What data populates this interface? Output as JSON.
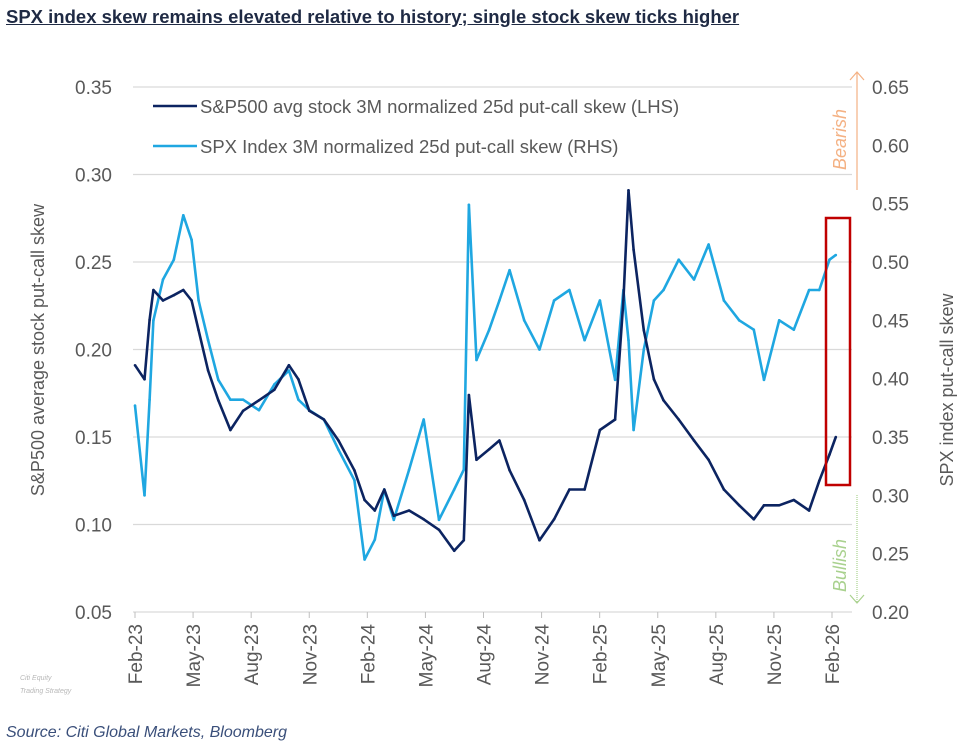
{
  "title": "SPX index skew remains elevated relative to history; single stock skew ticks higher",
  "source": "Source: Citi Global Markets, Bloomberg",
  "watermark": [
    "Citi Equity",
    "Trading Strategy"
  ],
  "chart_data": {
    "type": "line",
    "title": "SPX index skew remains elevated relative to history; single stock skew ticks higher",
    "ylabel": "S&P500 average stock put-call skew",
    "y2label": "SPX index put-call skew",
    "ylim": [
      0.05,
      0.35
    ],
    "y2lim": [
      0.2,
      0.65
    ],
    "yticks": [
      "0.05",
      "0.10",
      "0.15",
      "0.20",
      "0.25",
      "0.30",
      "0.35"
    ],
    "y2ticks": [
      "0.20",
      "0.25",
      "0.30",
      "0.35",
      "0.40",
      "0.45",
      "0.50",
      "0.55",
      "0.60",
      "0.65"
    ],
    "xticks": [
      "Feb-23",
      "May-23",
      "Aug-23",
      "Nov-23",
      "Feb-24",
      "May-24",
      "Aug-24",
      "Nov-24",
      "Feb-25",
      "May-25",
      "Aug-25",
      "Nov-25",
      "Feb-26"
    ],
    "grid": true,
    "legend_position": "top-left",
    "annotations": {
      "bearish": "Bearish",
      "bullish": "Bullish",
      "bearish_color": "#f4b183",
      "bullish_color": "#a9d18e",
      "highlight_box_color": "#c00000"
    },
    "x": [
      "2023-02-01",
      "2023-02-16",
      "2023-02-24",
      "2023-03-02",
      "2023-03-17",
      "2023-04-03",
      "2023-04-18",
      "2023-05-01",
      "2023-05-12",
      "2023-05-27",
      "2023-06-12",
      "2023-07-01",
      "2023-07-21",
      "2023-08-15",
      "2023-09-08",
      "2023-10-01",
      "2023-10-16",
      "2023-11-02",
      "2023-11-25",
      "2023-12-18",
      "2024-01-12",
      "2024-01-28",
      "2024-02-13",
      "2024-02-28",
      "2024-03-14",
      "2024-04-07",
      "2024-04-30",
      "2024-05-24",
      "2024-06-17",
      "2024-07-02",
      "2024-07-10",
      "2024-07-22",
      "2024-08-11",
      "2024-08-27",
      "2024-09-12",
      "2024-10-05",
      "2024-10-29",
      "2024-11-21",
      "2024-12-15",
      "2025-01-08",
      "2025-02-01",
      "2025-02-25",
      "2025-03-10",
      "2025-03-18",
      "2025-03-26",
      "2025-04-11",
      "2025-04-27",
      "2025-05-12",
      "2025-06-05",
      "2025-06-29",
      "2025-07-22",
      "2025-08-15",
      "2025-09-08",
      "2025-10-01",
      "2025-10-17",
      "2025-11-10",
      "2025-12-03",
      "2025-12-27",
      "2026-01-12",
      "2026-01-28",
      "2026-02-07"
    ],
    "series": [
      {
        "name": "S&P500 avg stock 3M normalized 25d put-call skew (LHS)",
        "axis": "left",
        "color": "#0c2461",
        "values": [
          0.191,
          0.183,
          0.217,
          0.234,
          0.228,
          0.231,
          0.234,
          0.228,
          0.211,
          0.188,
          0.171,
          0.154,
          0.165,
          0.171,
          0.177,
          0.191,
          0.183,
          0.165,
          0.16,
          0.148,
          0.131,
          0.114,
          0.108,
          0.12,
          0.105,
          0.108,
          0.103,
          0.097,
          0.085,
          0.091,
          0.174,
          0.137,
          0.143,
          0.148,
          0.131,
          0.114,
          0.091,
          0.103,
          0.12,
          0.12,
          0.154,
          0.16,
          0.228,
          0.291,
          0.257,
          0.211,
          0.183,
          0.171,
          0.16,
          0.148,
          0.137,
          0.12,
          0.111,
          0.103,
          0.111,
          0.111,
          0.114,
          0.108,
          0.125,
          0.14,
          0.15
        ]
      },
      {
        "name": "SPX Index 3M normalized 25d put-call skew (RHS)",
        "axis": "right",
        "color": "#1fa7e1",
        "values": [
          0.377,
          0.3,
          0.382,
          0.45,
          0.485,
          0.502,
          0.54,
          0.519,
          0.467,
          0.433,
          0.399,
          0.382,
          0.382,
          0.373,
          0.395,
          0.407,
          0.382,
          0.373,
          0.365,
          0.339,
          0.313,
          0.245,
          0.262,
          0.305,
          0.279,
          0.322,
          0.365,
          0.279,
          0.305,
          0.322,
          0.549,
          0.416,
          0.442,
          0.467,
          0.493,
          0.45,
          0.425,
          0.467,
          0.476,
          0.433,
          0.467,
          0.399,
          0.476,
          0.433,
          0.356,
          0.425,
          0.467,
          0.476,
          0.502,
          0.485,
          0.515,
          0.467,
          0.45,
          0.442,
          0.399,
          0.45,
          0.442,
          0.476,
          0.476,
          0.502,
          0.506
        ]
      }
    ]
  }
}
